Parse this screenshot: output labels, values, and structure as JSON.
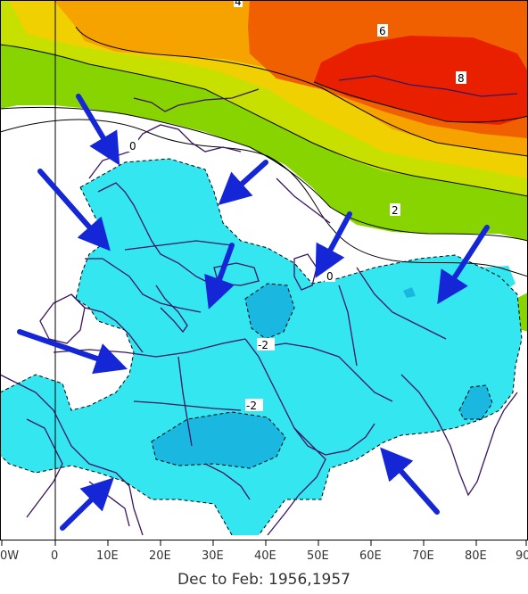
{
  "title": "Dec to Feb: 1956,1957",
  "x_axis": {
    "tick_labels": [
      "0W",
      "0",
      "10E",
      "20E",
      "30E",
      "40E",
      "50E",
      "60E",
      "70E",
      "80E",
      "90"
    ]
  },
  "contour_labels": [
    "4",
    "6",
    "8",
    "0",
    "2",
    "0",
    "-2",
    "-2"
  ],
  "colors": {
    "positive_2_4": "#88d400",
    "positive_4_5": "#c8e000",
    "positive_5_6": "#f0d000",
    "positive_6_7": "#f6a300",
    "positive_7_8": "#f06000",
    "positive_8_plus": "#e82000",
    "negative_0_2": "#33e6f0",
    "negative_2_plus": "#1ab8e0",
    "coastline": "#3a1560",
    "arrow": "#1426d6",
    "contour_line": "#000000"
  },
  "arrows_count_note": ""
}
